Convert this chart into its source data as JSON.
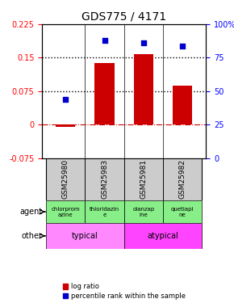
{
  "title": "GDS775 / 4171",
  "samples": [
    "GSM25980",
    "GSM25983",
    "GSM25981",
    "GSM25982"
  ],
  "log_ratio": [
    -0.005,
    0.138,
    0.158,
    0.088
  ],
  "percentile_rank": [
    0.44,
    0.88,
    0.86,
    0.84
  ],
  "bar_color": "#cc0000",
  "dot_color": "#0000cc",
  "ylim_left": [
    -0.075,
    0.225
  ],
  "ylim_right": [
    0,
    100
  ],
  "yticks_left": [
    -0.075,
    0.0,
    0.075,
    0.15,
    0.225
  ],
  "ytick_labels_left": [
    "-0.075",
    "0",
    "0.075",
    "0.15",
    "0.225"
  ],
  "yticks_right": [
    0,
    25,
    50,
    75,
    100
  ],
  "ytick_labels_right": [
    "0",
    "25",
    "50",
    "75",
    "100%"
  ],
  "hline_vals": [
    0.075,
    0.15
  ],
  "zero_line": 0.0,
  "agents": [
    "chlorprom\nazine",
    "thioridazin\ne",
    "olanzap\nine",
    "quetiapi\nne"
  ],
  "agent_colors": [
    "#aaffaa",
    "#aaffaa",
    "#aaffaa",
    "#aaffaa"
  ],
  "other_groups": [
    [
      "typical",
      2
    ],
    [
      "atypical",
      2
    ]
  ],
  "other_color_typical": "#ff88ff",
  "other_color_atypical": "#ff44ff",
  "label_agent": "agent",
  "label_other": "other",
  "legend_red": "log ratio",
  "legend_blue": "percentile rank within the sample",
  "sample_box_color": "#cccccc",
  "bar_width": 0.5
}
